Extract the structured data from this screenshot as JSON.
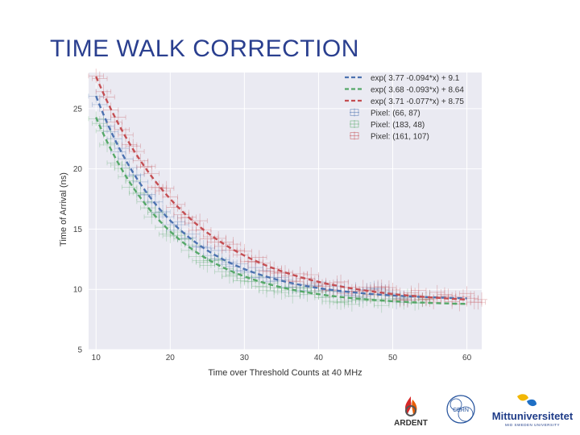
{
  "slide": {
    "title": "TIME WALK CORRECTION"
  },
  "chart_data": {
    "type": "scatter",
    "xlabel": "Time over Threshold Counts at 40 MHz",
    "ylabel": "Time of Arrival (ns)",
    "xlim": [
      9,
      62
    ],
    "ylim": [
      5,
      28
    ],
    "xticks": [
      10,
      20,
      30,
      40,
      50,
      60
    ],
    "yticks": [
      5,
      10,
      15,
      20,
      25
    ],
    "grid": true,
    "legend_position": "top-right",
    "fits": [
      {
        "label": "exp( 3.77 -0.094*x) + 9.1",
        "a": 3.77,
        "b": -0.094,
        "c": 9.1,
        "color": "#4c72b0"
      },
      {
        "label": "exp( 3.68 -0.093*x) + 8.64",
        "a": 3.68,
        "b": -0.093,
        "c": 8.64,
        "color": "#55a868"
      },
      {
        "label": "exp( 3.71 -0.077*x) + 8.75",
        "a": 3.71,
        "b": -0.077,
        "c": 8.75,
        "color": "#c44e52"
      }
    ],
    "series": [
      {
        "name": "Pixel: (66, 87)",
        "color": "#4c72b0",
        "fit_index": 0,
        "x_range": [
          10,
          52
        ],
        "xerr": 1,
        "yerr": 0.6
      },
      {
        "name": "Pixel: (183, 48)",
        "color": "#55a868",
        "fit_index": 1,
        "x_range": [
          10,
          55
        ],
        "xerr": 1,
        "yerr": 0.6
      },
      {
        "name": "Pixel: (161, 107)",
        "color": "#c44e52",
        "fit_index": 2,
        "x_range": [
          10,
          62
        ],
        "xerr": 1,
        "yerr": 0.6
      }
    ]
  },
  "logos": [
    {
      "name": "ardent",
      "text": "ARDENT"
    },
    {
      "name": "cern",
      "text": "CERN"
    },
    {
      "name": "mittuniversitetet",
      "text": "Mittuniversitetet",
      "sub": "MID SWEDEN UNIVERSITY"
    }
  ]
}
